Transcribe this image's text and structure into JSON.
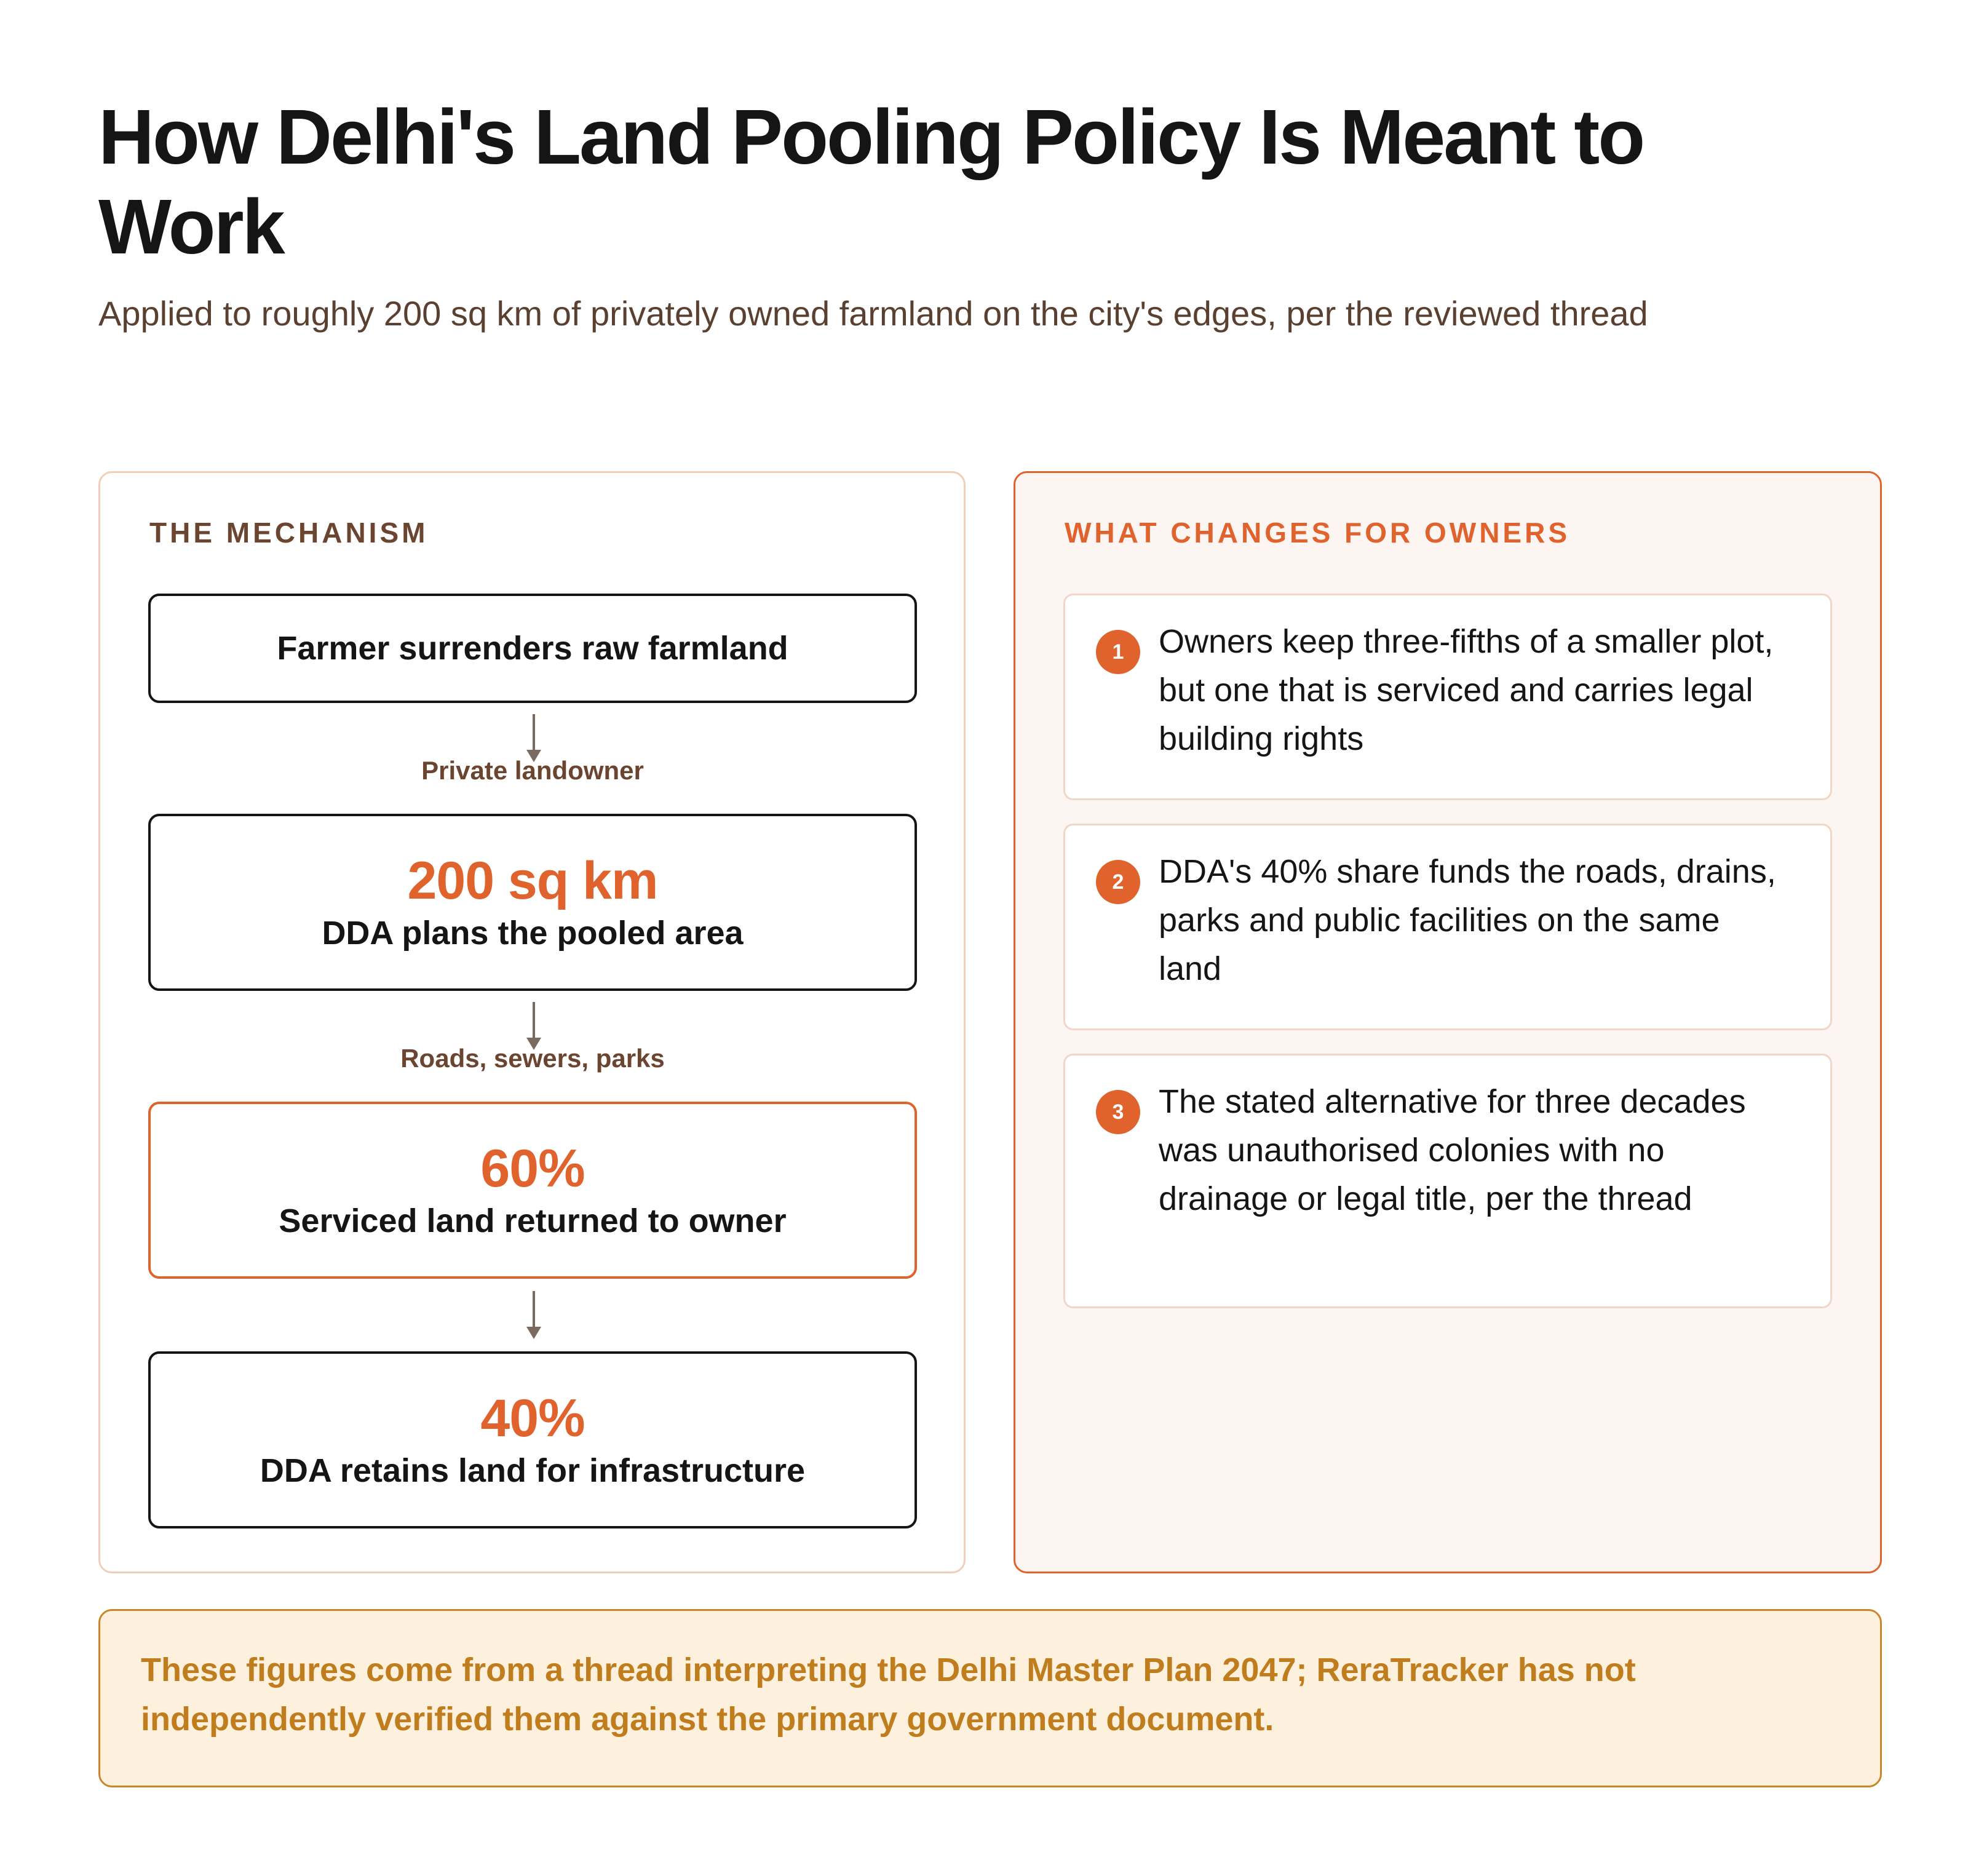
{
  "header": {
    "title": "How Delhi's Land Pooling Policy Is Meant to Work",
    "subtitle": "Applied to roughly 200 sq km of privately owned farmland on the city's edges, per the reviewed thread"
  },
  "mechanism": {
    "heading": "THE MECHANISM",
    "steps": [
      {
        "value": "",
        "label": "Farmer surrenders raw farmland"
      },
      {
        "value": "200 sq km",
        "label": "DDA plans the pooled area"
      },
      {
        "value": "60%",
        "label": "Serviced land returned to owner"
      },
      {
        "value": "40%",
        "label": "DDA retains land for infrastructure"
      }
    ],
    "connectors": [
      "Private landowner",
      "Roads, sewers, parks",
      ""
    ]
  },
  "changes": {
    "heading": "WHAT CHANGES FOR OWNERS",
    "items": [
      {
        "number": "1",
        "text": "Owners keep three-fifths of a smaller plot, but one that is serviced and carries legal building rights"
      },
      {
        "number": "2",
        "text": "DDA's 40% share funds the roads, drains, parks and public facilities on the same land"
      },
      {
        "number": "3",
        "text": "The stated alternative for three decades was unauthorised colonies with no drainage or legal title, per the thread"
      }
    ]
  },
  "note": {
    "text": "These figures come from a thread interpreting the Delhi Master Plan 2047; ReraTracker has not independently verified them against the primary government document."
  },
  "colors": {
    "accent": "#e0632d",
    "dark_text": "#151515",
    "brown_text": "#6b4530",
    "note_text": "#c07d1e",
    "note_bg": "#fdf0dc"
  }
}
